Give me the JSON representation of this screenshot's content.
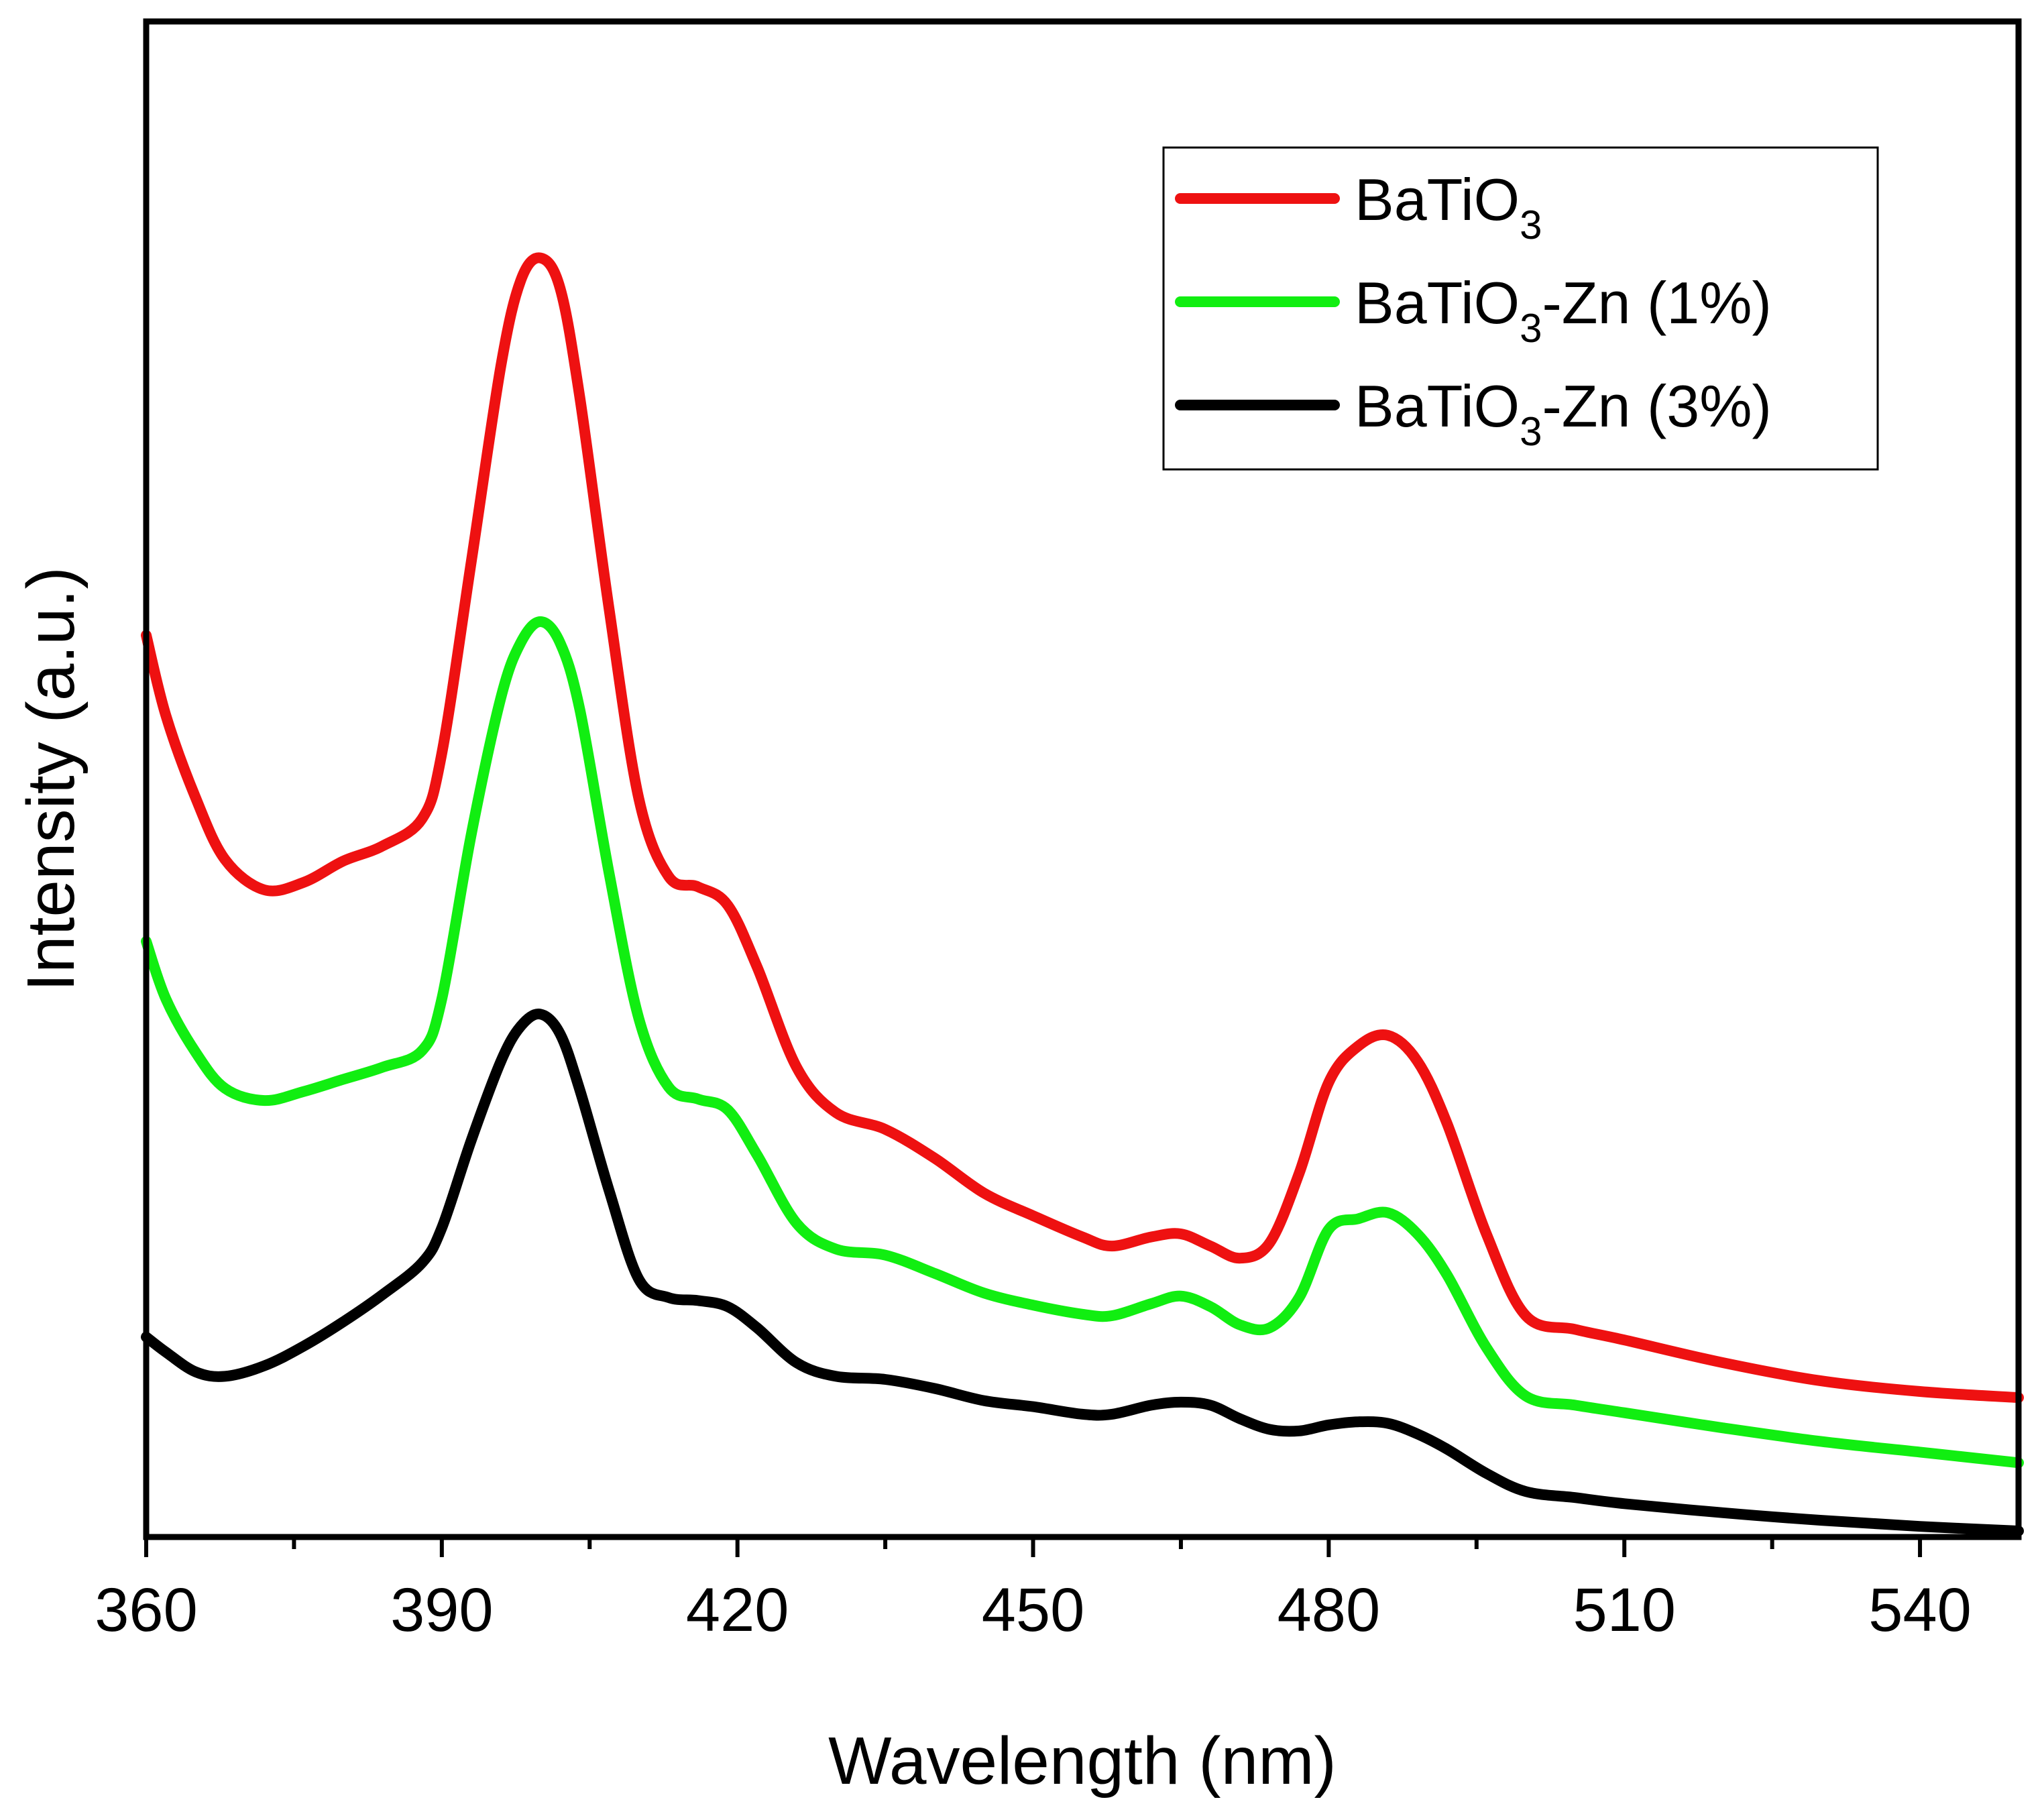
{
  "chart_data": {
    "type": "line",
    "title": "",
    "xlabel": "Wavelength (nm)",
    "ylabel": "Intensity (a.u.)",
    "xlim": [
      360,
      550
    ],
    "ylim": [
      0,
      100
    ],
    "xticks": [
      360,
      390,
      420,
      450,
      480,
      510,
      540
    ],
    "xtick_labels": [
      "360",
      "390",
      "420",
      "450",
      "480",
      "510",
      "540"
    ],
    "yticks_shown": false,
    "grid": false,
    "legend_position": "top-right",
    "series": [
      {
        "name": "BaTiO3-Zn (3%)",
        "label_main": "BaTiO",
        "label_sub": "3",
        "label_rest": "-Zn (3%)",
        "color": "#000000",
        "x": [
          360,
          362,
          365,
          368,
          372,
          376,
          380,
          384,
          388,
          390,
          393,
          396,
          398,
          400,
          402,
          404,
          407,
          410,
          413,
          416,
          419,
          422,
          426,
          430,
          435,
          440,
          445,
          450,
          455,
          458,
          462,
          465,
          468,
          471,
          474,
          477,
          480,
          483,
          486,
          489,
          492,
          496,
          500,
          505,
          510,
          520,
          530,
          540,
          550
        ],
        "values": [
          13.2,
          12.2,
          10.9,
          10.6,
          11.3,
          12.6,
          14.2,
          16.0,
          18.1,
          20.4,
          26.2,
          31.4,
          33.7,
          34.5,
          33.2,
          29.5,
          22.8,
          17.0,
          15.8,
          15.6,
          15.2,
          13.8,
          11.5,
          10.6,
          10.4,
          9.8,
          9.0,
          8.6,
          8.1,
          8.1,
          8.7,
          8.9,
          8.7,
          7.8,
          7.1,
          7.0,
          7.4,
          7.6,
          7.5,
          6.8,
          5.8,
          4.2,
          3.0,
          2.6,
          2.2,
          1.6,
          1.1,
          0.7,
          0.4
        ]
      },
      {
        "name": "BaTiO3-Zn (1%)",
        "label_main": "BaTiO",
        "label_sub": "3",
        "label_rest": "-Zn (1%)",
        "color": "#11ee11",
        "x": [
          360,
          362,
          365,
          368,
          372,
          376,
          380,
          384,
          388,
          390,
          393,
          396,
          398,
          400,
          402,
          404,
          407,
          410,
          413,
          416,
          419,
          422,
          426,
          430,
          435,
          440,
          445,
          450,
          455,
          458,
          462,
          465,
          468,
          471,
          474,
          477,
          480,
          483,
          486,
          489,
          492,
          496,
          500,
          505,
          510,
          520,
          530,
          540,
          550
        ],
        "values": [
          39.3,
          35.5,
          32.0,
          29.6,
          28.8,
          29.4,
          30.2,
          31.0,
          32.1,
          35.5,
          46.4,
          55.4,
          59.0,
          60.4,
          59.0,
          54.6,
          43.7,
          34.2,
          29.7,
          28.9,
          28.2,
          25.2,
          20.7,
          19.0,
          18.6,
          17.4,
          16.1,
          15.3,
          14.7,
          14.6,
          15.4,
          15.9,
          15.2,
          14.0,
          13.8,
          15.8,
          20.3,
          21.0,
          21.4,
          20.0,
          17.3,
          12.5,
          9.3,
          8.7,
          8.2,
          7.2,
          6.3,
          5.6,
          4.9
        ]
      },
      {
        "name": "BaTiO3",
        "label_main": "BaTiO",
        "label_sub": "3",
        "label_rest": "",
        "color": "#ee1111",
        "x": [
          360,
          362,
          365,
          368,
          372,
          376,
          380,
          384,
          388,
          390,
          393,
          396,
          398,
          400,
          402,
          404,
          407,
          410,
          413,
          416,
          419,
          422,
          426,
          430,
          435,
          440,
          445,
          450,
          455,
          458,
          462,
          465,
          468,
          471,
          474,
          477,
          480,
          483,
          486,
          489,
          492,
          496,
          500,
          505,
          510,
          520,
          530,
          540,
          550
        ],
        "values": [
          59.5,
          54.2,
          48.8,
          44.7,
          42.7,
          43.2,
          44.6,
          45.6,
          47.4,
          51.7,
          64.4,
          77.3,
          82.9,
          84.4,
          82.4,
          75.2,
          61.1,
          48.7,
          43.6,
          42.9,
          41.7,
          37.6,
          31.0,
          28.0,
          26.9,
          25.0,
          22.7,
          21.2,
          19.8,
          19.2,
          19.8,
          20.0,
          19.2,
          18.4,
          19.4,
          24.0,
          30.0,
          32.4,
          33.1,
          31.4,
          27.3,
          20.0,
          14.6,
          13.7,
          13.0,
          11.5,
          10.3,
          9.6,
          9.2
        ]
      }
    ]
  }
}
